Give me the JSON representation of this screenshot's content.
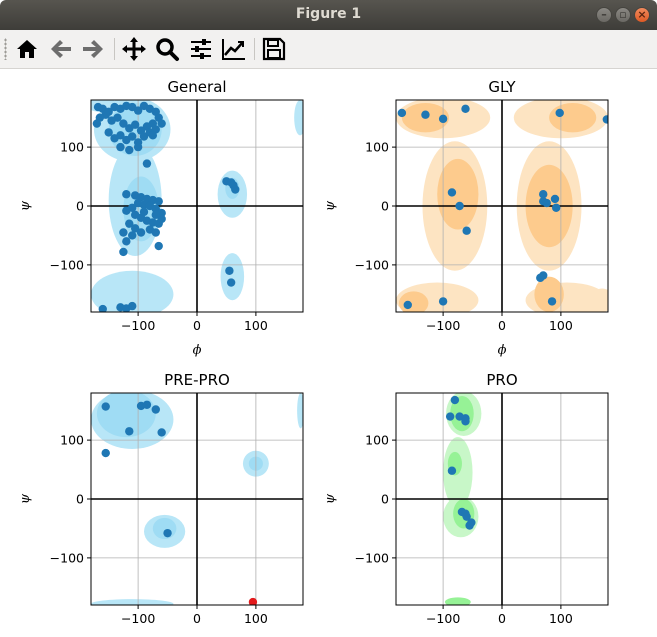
{
  "window": {
    "title": "Figure 1"
  },
  "toolbar": {
    "buttons": [
      {
        "name": "home-icon"
      },
      {
        "name": "back-arrow-icon"
      },
      {
        "name": "forward-arrow-icon"
      },
      {
        "name": "pan-icon"
      },
      {
        "name": "zoom-icon"
      },
      {
        "name": "configure-subplots-icon"
      },
      {
        "name": "edit-axis-icon"
      },
      {
        "name": "save-icon"
      }
    ]
  },
  "colors": {
    "general_fill": [
      "#b8e6f7",
      "#9fdcf4"
    ],
    "gly_fill": [
      "#fde4c2",
      "#fdcb8d"
    ],
    "prepro_fill": [
      "#b8e6f7",
      "#9fdcf4"
    ],
    "pro_fill": [
      "#c8f7c8",
      "#96f296"
    ],
    "point": "#1f77b4",
    "outlier": "#e31a1c"
  },
  "chart_data": [
    {
      "type": "scatter",
      "title": "General",
      "xlabel": "ϕ",
      "ylabel": "ψ",
      "xlim": [
        -180,
        180
      ],
      "ylim": [
        -180,
        180
      ],
      "xticks": [
        -100,
        0,
        100
      ],
      "yticks": [
        -100,
        0,
        100
      ],
      "xtick_labels": [
        "−100",
        "0",
        "100"
      ],
      "ytick_labels": [
        "−100",
        "0",
        "100"
      ],
      "grid": true,
      "points": [
        [
          -168,
          168
        ],
        [
          -160,
          165
        ],
        [
          -150,
          160
        ],
        [
          -140,
          168
        ],
        [
          -130,
          165
        ],
        [
          -120,
          170
        ],
        [
          -110,
          168
        ],
        [
          -100,
          162
        ],
        [
          -90,
          170
        ],
        [
          -80,
          165
        ],
        [
          -70,
          160
        ],
        [
          -65,
          150
        ],
        [
          -75,
          140
        ],
        [
          -85,
          135
        ],
        [
          -95,
          128
        ],
        [
          -105,
          138
        ],
        [
          -115,
          132
        ],
        [
          -125,
          140
        ],
        [
          -135,
          150
        ],
        [
          -145,
          145
        ],
        [
          -155,
          155
        ],
        [
          -165,
          150
        ],
        [
          -170,
          140
        ],
        [
          -150,
          125
        ],
        [
          -140,
          115
        ],
        [
          -130,
          120
        ],
        [
          -120,
          112
        ],
        [
          -110,
          118
        ],
        [
          -100,
          108
        ],
        [
          -90,
          118
        ],
        [
          -80,
          125
        ],
        [
          -70,
          130
        ],
        [
          -60,
          140
        ],
        [
          -75,
          120
        ],
        [
          -130,
          100
        ],
        [
          -115,
          95
        ],
        [
          -100,
          100
        ],
        [
          -85,
          72
        ],
        [
          -120,
          20
        ],
        [
          -105,
          18
        ],
        [
          -95,
          15
        ],
        [
          -85,
          12
        ],
        [
          -75,
          10
        ],
        [
          -65,
          8
        ],
        [
          -100,
          5
        ],
        [
          -90,
          2
        ],
        [
          -80,
          0
        ],
        [
          -70,
          -5
        ],
        [
          -60,
          -12
        ],
        [
          -110,
          -3
        ],
        [
          -120,
          -8
        ],
        [
          -105,
          -15
        ],
        [
          -95,
          -20
        ],
        [
          -85,
          -25
        ],
        [
          -75,
          -28
        ],
        [
          -65,
          -30
        ],
        [
          -60,
          -22
        ],
        [
          -70,
          -15
        ],
        [
          -90,
          -10
        ],
        [
          -115,
          -30
        ],
        [
          -125,
          -45
        ],
        [
          -105,
          -38
        ],
        [
          -95,
          -45
        ],
        [
          -80,
          -40
        ],
        [
          -70,
          -45
        ],
        [
          -65,
          -68
        ],
        [
          -120,
          -60
        ],
        [
          -125,
          -78
        ],
        [
          -110,
          -50
        ],
        [
          -160,
          -175
        ],
        [
          -130,
          -172
        ],
        [
          -120,
          -174
        ],
        [
          -110,
          -170
        ],
        [
          50,
          42
        ],
        [
          58,
          40
        ],
        [
          62,
          35
        ],
        [
          65,
          28
        ],
        [
          55,
          -110
        ],
        [
          58,
          -130
        ]
      ],
      "outliers": []
    },
    {
      "type": "scatter",
      "title": "GLY",
      "xlabel": "ϕ",
      "ylabel": "ψ",
      "xlim": [
        -180,
        180
      ],
      "ylim": [
        -180,
        180
      ],
      "xticks": [
        -100,
        0,
        100
      ],
      "yticks": [
        -100,
        0,
        100
      ],
      "xtick_labels": [
        "−100",
        "0",
        "100"
      ],
      "ytick_labels": [
        "−100",
        "0",
        "100"
      ],
      "grid": true,
      "points": [
        [
          -170,
          158
        ],
        [
          -130,
          155
        ],
        [
          -100,
          148
        ],
        [
          -62,
          165
        ],
        [
          98,
          158
        ],
        [
          178,
          147
        ],
        [
          -85,
          23
        ],
        [
          -72,
          0
        ],
        [
          -60,
          -42
        ],
        [
          70,
          20
        ],
        [
          76,
          5
        ],
        [
          70,
          8
        ],
        [
          90,
          12
        ],
        [
          92,
          -3
        ],
        [
          70,
          -118
        ],
        [
          65,
          -122
        ],
        [
          85,
          -162
        ],
        [
          -160,
          -168
        ],
        [
          -100,
          -162
        ]
      ],
      "outliers": []
    },
    {
      "type": "scatter",
      "title": "PRE-PRO",
      "xlabel": "",
      "ylabel": "ψ",
      "xlim": [
        -180,
        180
      ],
      "ylim": [
        -180,
        180
      ],
      "xticks": [
        -100,
        0,
        100
      ],
      "yticks": [
        -100,
        0,
        100
      ],
      "xtick_labels": [
        "−100",
        "0",
        "100"
      ],
      "ytick_labels": [
        "−100",
        "0",
        "100"
      ],
      "grid": true,
      "points": [
        [
          -155,
          157
        ],
        [
          -95,
          158
        ],
        [
          -85,
          160
        ],
        [
          -70,
          152
        ],
        [
          -60,
          113
        ],
        [
          -115,
          115
        ],
        [
          -155,
          78
        ],
        [
          -50,
          -58
        ]
      ],
      "outliers": [
        [
          95,
          -175
        ]
      ]
    },
    {
      "type": "scatter",
      "title": "PRO",
      "xlabel": "",
      "ylabel": "ψ",
      "xlim": [
        -180,
        180
      ],
      "ylim": [
        -180,
        180
      ],
      "xticks": [
        -100,
        0,
        100
      ],
      "yticks": [
        -100,
        0,
        100
      ],
      "xtick_labels": [
        "−100",
        "0",
        "100"
      ],
      "ytick_labels": [
        "−100",
        "0",
        "100"
      ],
      "grid": true,
      "points": [
        [
          -80,
          168
        ],
        [
          -88,
          140
        ],
        [
          -72,
          140
        ],
        [
          -62,
          137
        ],
        [
          -62,
          132
        ],
        [
          -85,
          48
        ],
        [
          -68,
          -22
        ],
        [
          -62,
          -25
        ],
        [
          -60,
          -30
        ],
        [
          -55,
          -45
        ],
        [
          -52,
          -40
        ]
      ],
      "outliers": []
    }
  ]
}
